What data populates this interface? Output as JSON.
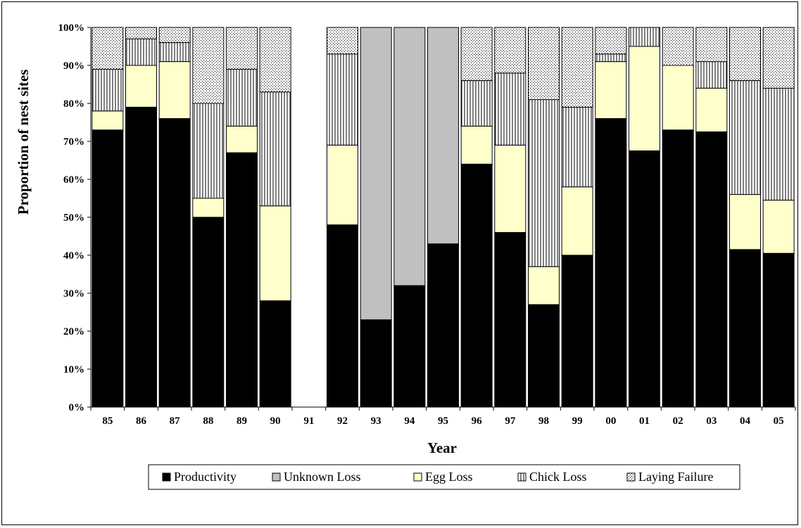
{
  "chart_data": {
    "type": "bar",
    "stacked": true,
    "title": "",
    "xlabel": "Year",
    "ylabel": "Proportion of nest sites",
    "ylim": [
      0,
      100
    ],
    "ytick_format": "percent",
    "yticks": [
      "0%",
      "10%",
      "20%",
      "30%",
      "40%",
      "50%",
      "60%",
      "70%",
      "80%",
      "90%",
      "100%"
    ],
    "grid": false,
    "legend_position": "bottom",
    "categories": [
      "85",
      "86",
      "87",
      "88",
      "89",
      "90",
      "91",
      "92",
      "93",
      "94",
      "95",
      "96",
      "97",
      "98",
      "99",
      "00",
      "01",
      "02",
      "03",
      "04",
      "05"
    ],
    "series": [
      {
        "name": "Productivity",
        "pattern": "solid-black",
        "values": [
          73,
          79,
          76,
          50,
          67,
          28,
          0,
          48,
          23,
          32,
          43,
          64,
          46,
          27,
          40,
          76,
          67.5,
          73,
          72.5,
          41.5,
          40.5
        ]
      },
      {
        "name": "Unknown Loss",
        "pattern": "solid-gray",
        "values": [
          0,
          0,
          0,
          0,
          0,
          0,
          0,
          0,
          77,
          68,
          57,
          0,
          0,
          0,
          0,
          0,
          0,
          0,
          0,
          0,
          0
        ]
      },
      {
        "name": "Egg Loss",
        "pattern": "solid-yellow",
        "values": [
          5,
          11,
          15,
          5,
          7,
          25,
          0,
          21,
          0,
          0,
          0,
          10,
          23,
          10,
          18,
          15,
          27.5,
          17,
          11.5,
          14.5,
          14
        ]
      },
      {
        "name": "Chick Loss",
        "pattern": "vertical-lines",
        "values": [
          11,
          7,
          5,
          25,
          15,
          30,
          0,
          24,
          0,
          0,
          0,
          12,
          19,
          44,
          21,
          2,
          5,
          0,
          7,
          30,
          29.5
        ]
      },
      {
        "name": "Laying Failure",
        "pattern": "dots",
        "values": [
          11,
          3,
          4,
          20,
          11,
          17,
          0,
          7,
          0,
          0,
          0,
          14,
          12,
          19,
          21,
          7,
          0,
          10,
          9,
          14,
          16
        ]
      }
    ],
    "colors": {
      "Productivity": "#000000",
      "Unknown Loss": "#c0c0c0",
      "Egg Loss": "#ffffcc",
      "Chick Loss": "#ffffff",
      "Laying Failure": "#ffffff"
    }
  }
}
